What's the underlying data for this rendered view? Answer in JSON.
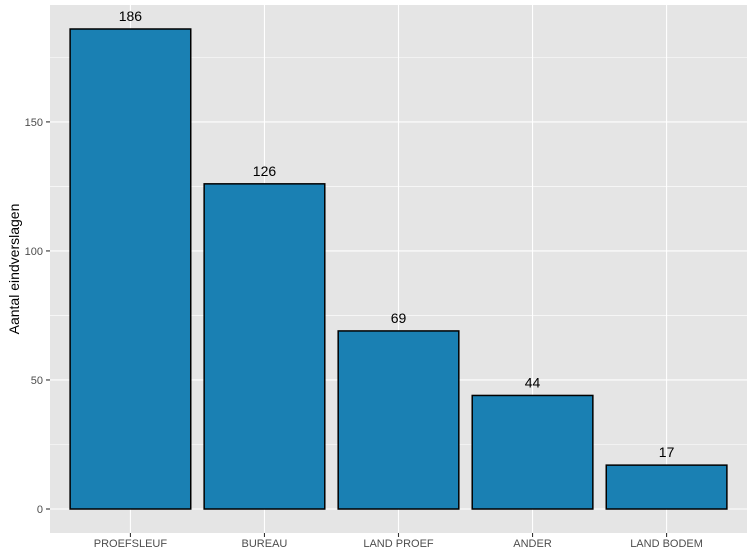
{
  "chart_data": {
    "type": "bar",
    "title": "",
    "xlabel": "",
    "ylabel": "Aantal eindverslagen",
    "categories": [
      "PROEFSLEUF",
      "BUREAU",
      "LAND PROEF",
      "ANDER",
      "LAND BODEM"
    ],
    "values": [
      186,
      126,
      69,
      44,
      17
    ],
    "data_labels": [
      "186",
      "126",
      "69",
      "44",
      "17"
    ],
    "ylim": [
      -9.3,
      195.3
    ],
    "y_ticks": [
      0,
      50,
      100,
      150
    ],
    "y_tick_labels": [
      "0",
      "50",
      "100",
      "150"
    ],
    "grid": true,
    "legend": "none",
    "colors": {
      "bar_fill": "#1a80b3",
      "bar_stroke": "#000000",
      "panel_background": "#e5e5e5",
      "grid_line": "#ffffff",
      "tick_label": "#4d4d4d"
    }
  }
}
